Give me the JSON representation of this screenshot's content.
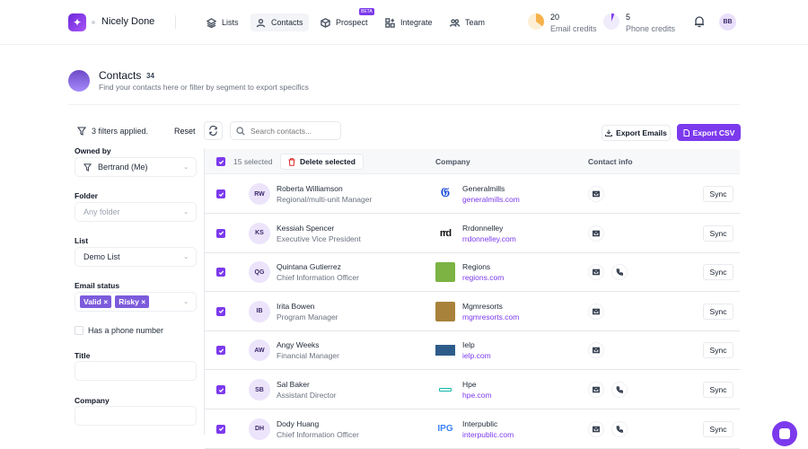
{
  "app": {
    "name": "Nicely Done"
  },
  "nav": {
    "items": [
      {
        "label": "Lists",
        "icon": "layers-icon"
      },
      {
        "label": "Contacts",
        "icon": "users-icon",
        "active": true
      },
      {
        "label": "Prospect",
        "icon": "cube-icon",
        "badge": "BETA"
      },
      {
        "label": "Integrate",
        "icon": "grid-plus-icon"
      },
      {
        "label": "Team",
        "icon": "team-icon"
      }
    ]
  },
  "credits": {
    "email": {
      "count": "20",
      "label": "Email credits"
    },
    "phone": {
      "count": "5",
      "label": "Phone credits"
    }
  },
  "user": {
    "initials": "BB"
  },
  "page": {
    "title": "Contacts",
    "count": "34",
    "subtitle": "Find your contacts here or filter by segment to export specifics"
  },
  "filters": {
    "summary": "3 filters applied.",
    "reset_label": "Reset",
    "owned_by": {
      "label": "Owned by",
      "value": "Bertrand (Me)"
    },
    "folder": {
      "label": "Folder",
      "placeholder": "Any folder"
    },
    "list": {
      "label": "List",
      "value": "Demo List"
    },
    "email_status": {
      "label": "Email status",
      "tags": [
        "Valid",
        "Risky"
      ]
    },
    "has_phone": {
      "label": "Has a phone number",
      "checked": false
    },
    "title": {
      "label": "Title",
      "value": ""
    },
    "company": {
      "label": "Company",
      "value": ""
    }
  },
  "toolbar": {
    "search_placeholder": "Search contacts...",
    "export_emails": "Export Emails",
    "export_csv": "Export CSV"
  },
  "table": {
    "selected_text": "15 selected",
    "delete_label": "Delete selected",
    "columns": {
      "company": "Company",
      "contact_info": "Contact info"
    },
    "sync_label": "Sync",
    "rows": [
      {
        "initials": "RW",
        "name": "Roberta Williamson",
        "title": "Regional/multi-unit Manager",
        "company": "Generalmills",
        "domain": "generalmills.com",
        "phone": false
      },
      {
        "initials": "KS",
        "name": "Kessiah Spencer",
        "title": "Executive Vice President",
        "company": "Rrdonnelley",
        "domain": "rrdonnelley.com",
        "phone": false
      },
      {
        "initials": "QG",
        "name": "Quintana Gutierrez",
        "title": "Chief Information Officer",
        "company": "Regions",
        "domain": "regions.com",
        "phone": true
      },
      {
        "initials": "IB",
        "name": "Irita Bowen",
        "title": "Program Manager",
        "company": "Mgmresorts",
        "domain": "mgmresorts.com",
        "phone": false
      },
      {
        "initials": "AW",
        "name": "Angy Weeks",
        "title": "Financial Manager",
        "company": "Ielp",
        "domain": "ielp.com",
        "phone": false
      },
      {
        "initials": "SB",
        "name": "Sal Baker",
        "title": "Assistant Director",
        "company": "Hpe",
        "domain": "hpe.com",
        "phone": true
      },
      {
        "initials": "DH",
        "name": "Dody Huang",
        "title": "Chief Information Officer",
        "company": "Interpublic",
        "domain": "interpublic.com",
        "phone": true
      }
    ]
  },
  "colors": {
    "accent": "#7c3aed"
  }
}
